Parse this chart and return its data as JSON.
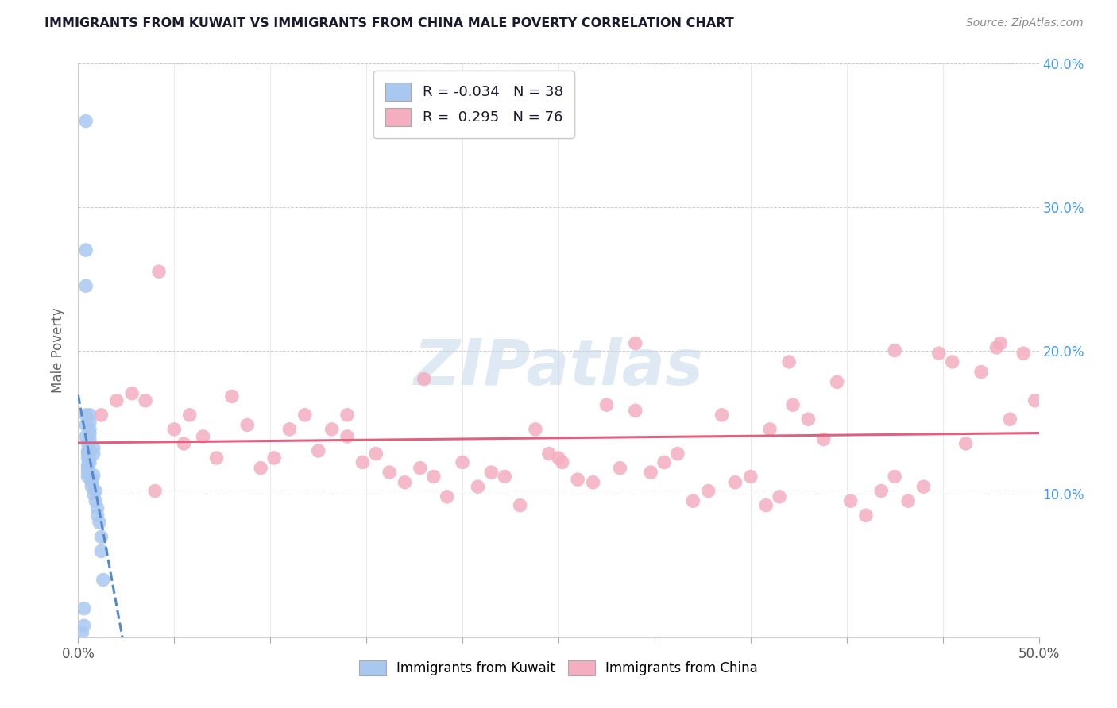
{
  "title": "IMMIGRANTS FROM KUWAIT VS IMMIGRANTS FROM CHINA MALE POVERTY CORRELATION CHART",
  "source": "Source: ZipAtlas.com",
  "ylabel": "Male Poverty",
  "xlim": [
    0.0,
    0.5
  ],
  "ylim": [
    0.0,
    0.4
  ],
  "xticks": [
    0.0,
    0.05,
    0.1,
    0.15,
    0.2,
    0.25,
    0.3,
    0.35,
    0.4,
    0.45,
    0.5
  ],
  "yticks": [
    0.0,
    0.1,
    0.2,
    0.3,
    0.4
  ],
  "r_kuwait": -0.034,
  "n_kuwait": 38,
  "r_china": 0.295,
  "n_china": 76,
  "color_kuwait": "#a8c8f0",
  "color_china": "#f4aec0",
  "trendline_kuwait_color": "#5588cc",
  "trendline_china_color": "#e06080",
  "background_color": "#ffffff",
  "grid_color": "#cccccc",
  "watermark": "ZIPatlas",
  "legend_bottom_labels": [
    "Immigrants from Kuwait",
    "Immigrants from China"
  ],
  "title_color": "#1a1a2e",
  "source_color": "#888888",
  "axis_tick_color": "#4499ee",
  "kuwait_x": [
    0.004,
    0.004,
    0.004,
    0.004,
    0.004,
    0.004,
    0.005,
    0.005,
    0.005,
    0.005,
    0.005,
    0.005,
    0.005,
    0.005,
    0.006,
    0.006,
    0.006,
    0.006,
    0.006,
    0.006,
    0.007,
    0.007,
    0.007,
    0.008,
    0.008,
    0.008,
    0.008,
    0.009,
    0.009,
    0.01,
    0.01,
    0.011,
    0.012,
    0.012,
    0.013,
    0.003,
    0.003,
    0.002
  ],
  "kuwait_y": [
    0.36,
    0.27,
    0.245,
    0.155,
    0.148,
    0.14,
    0.135,
    0.13,
    0.128,
    0.125,
    0.12,
    0.118,
    0.115,
    0.112,
    0.155,
    0.15,
    0.145,
    0.142,
    0.138,
    0.122,
    0.11,
    0.108,
    0.105,
    0.132,
    0.128,
    0.113,
    0.1,
    0.102,
    0.095,
    0.09,
    0.085,
    0.08,
    0.07,
    0.06,
    0.04,
    0.02,
    0.008,
    0.003
  ],
  "china_x": [
    0.012,
    0.02,
    0.028,
    0.035,
    0.042,
    0.05,
    0.058,
    0.065,
    0.072,
    0.08,
    0.088,
    0.095,
    0.102,
    0.11,
    0.118,
    0.125,
    0.132,
    0.14,
    0.148,
    0.155,
    0.162,
    0.17,
    0.178,
    0.185,
    0.192,
    0.2,
    0.208,
    0.215,
    0.222,
    0.23,
    0.238,
    0.245,
    0.252,
    0.26,
    0.268,
    0.275,
    0.282,
    0.29,
    0.298,
    0.305,
    0.312,
    0.32,
    0.328,
    0.335,
    0.342,
    0.35,
    0.358,
    0.365,
    0.372,
    0.38,
    0.388,
    0.395,
    0.402,
    0.41,
    0.418,
    0.425,
    0.432,
    0.44,
    0.448,
    0.455,
    0.462,
    0.47,
    0.478,
    0.485,
    0.492,
    0.498,
    0.04,
    0.055,
    0.14,
    0.29,
    0.37,
    0.425,
    0.48,
    0.36,
    0.18,
    0.25
  ],
  "china_y": [
    0.155,
    0.165,
    0.17,
    0.165,
    0.255,
    0.145,
    0.155,
    0.14,
    0.125,
    0.168,
    0.148,
    0.118,
    0.125,
    0.145,
    0.155,
    0.13,
    0.145,
    0.14,
    0.122,
    0.128,
    0.115,
    0.108,
    0.118,
    0.112,
    0.098,
    0.122,
    0.105,
    0.115,
    0.112,
    0.092,
    0.145,
    0.128,
    0.122,
    0.11,
    0.108,
    0.162,
    0.118,
    0.205,
    0.115,
    0.122,
    0.128,
    0.095,
    0.102,
    0.155,
    0.108,
    0.112,
    0.092,
    0.098,
    0.162,
    0.152,
    0.138,
    0.178,
    0.095,
    0.085,
    0.102,
    0.112,
    0.095,
    0.105,
    0.198,
    0.192,
    0.135,
    0.185,
    0.202,
    0.152,
    0.198,
    0.165,
    0.102,
    0.135,
    0.155,
    0.158,
    0.192,
    0.2,
    0.205,
    0.145,
    0.18,
    0.125
  ]
}
